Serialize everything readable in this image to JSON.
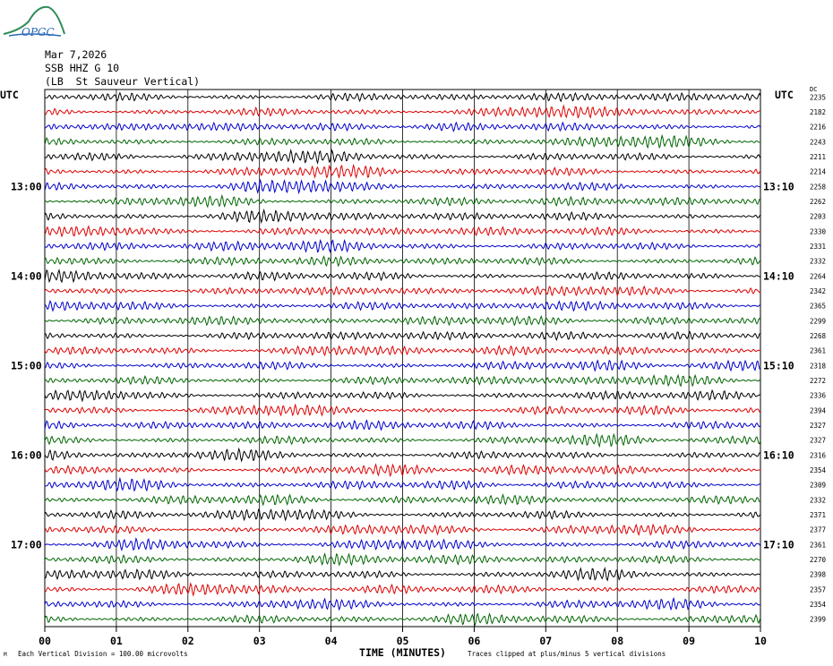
{
  "header": {
    "logo_text": "OPGC",
    "date": "Mar 7,2026",
    "station": "SSB HHZ G 10",
    "location": "(LB  St Sauveur Vertical)"
  },
  "chart_data": {
    "type": "line",
    "title": "Mar 7,2026 SSB HHZ G 10 (LB  St Sauveur Vertical)",
    "xlabel": "TIME (MINUTES)",
    "xlim": [
      0,
      10
    ],
    "x_ticks": [
      "00",
      "01",
      "02",
      "03",
      "04",
      "05",
      "06",
      "07",
      "08",
      "09",
      "10"
    ],
    "left_axis_label": "UTC",
    "right_axis_label": "UTC",
    "right_corner_label": "DC",
    "left_time_labels": [
      {
        "row": 6,
        "text": "13:00"
      },
      {
        "row": 12,
        "text": "14:00"
      },
      {
        "row": 18,
        "text": "15:00"
      },
      {
        "row": 24,
        "text": "16:00"
      },
      {
        "row": 30,
        "text": "17:00"
      }
    ],
    "right_time_labels": [
      {
        "row": 6,
        "text": "13:10"
      },
      {
        "row": 12,
        "text": "14:10"
      },
      {
        "row": 18,
        "text": "15:10"
      },
      {
        "row": 24,
        "text": "16:10"
      },
      {
        "row": 30,
        "text": "17:10"
      }
    ],
    "dc_offsets": [
      2235,
      2182,
      2216,
      2243,
      2211,
      2214,
      2258,
      2262,
      2203,
      2330,
      2331,
      2332,
      2264,
      2342,
      2365,
      2299,
      2268,
      2361,
      2318,
      2272,
      2336,
      2394,
      2327,
      2327,
      2316,
      2354,
      2309,
      2332,
      2371,
      2377,
      2361,
      2270,
      2398,
      2357,
      2354,
      2399
    ],
    "trace_colors": [
      "#000000",
      "#dd0000",
      "#0000cc",
      "#006600"
    ],
    "grid": true,
    "footer_left": "Each Vertical Division =  100.00 microvolts",
    "footer_right": "Traces clipped at plus/minus 5 vertical divisions"
  }
}
